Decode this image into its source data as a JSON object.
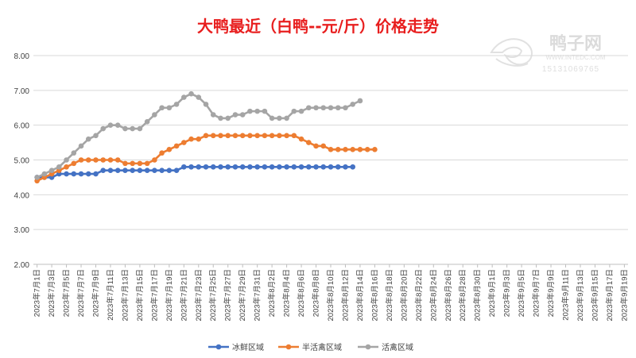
{
  "chart_data": {
    "type": "line",
    "title": "大鸭最近（白鸭--元/斤）价格走势",
    "xlabel": "",
    "ylabel": "",
    "ylim": [
      2.0,
      8.0
    ],
    "yticks": [
      "2.00",
      "3.00",
      "4.00",
      "5.00",
      "6.00",
      "7.00",
      "8.00"
    ],
    "grid": "horizontal",
    "legend_position": "bottom",
    "x_start": "2023-07-01",
    "x_end": "2023-09-20",
    "x_tick_labels": [
      "2023年7月1日",
      "2023年7月3日",
      "2023年7月5日",
      "2023年7月7日",
      "2023年7月9日",
      "2023年7月11日",
      "2023年7月13日",
      "2023年7月15日",
      "2023年7月17日",
      "2023年7月19日",
      "2023年7月21日",
      "2023年7月23日",
      "2023年7月25日",
      "2023年7月27日",
      "2023年7月29日",
      "2023年7月31日",
      "2023年8月2日",
      "2023年8月4日",
      "2023年8月6日",
      "2023年8月8日",
      "2023年8月10日",
      "2023年8月12日",
      "2023年8月14日",
      "2023年8月16日",
      "2023年8月18日",
      "2023年8月20日",
      "2023年8月22日",
      "2023年8月24日",
      "2023年8月26日",
      "2023年8月28日",
      "2023年8月30日",
      "2023年9月1日",
      "2023年9月3日",
      "2023年9月5日",
      "2023年9月7日",
      "2023年9月9日",
      "2023年9月11日",
      "2023年9月13日",
      "2023年9月15日",
      "2023年9月17日",
      "2023年9月19日"
    ],
    "series": [
      {
        "name": "冰鲜区域",
        "color": "#4472C4",
        "values": [
          4.5,
          4.5,
          4.5,
          4.6,
          4.6,
          4.6,
          4.6,
          4.6,
          4.6,
          4.7,
          4.7,
          4.7,
          4.7,
          4.7,
          4.7,
          4.7,
          4.7,
          4.7,
          4.7,
          4.7,
          4.8,
          4.8,
          4.8,
          4.8,
          4.8,
          4.8,
          4.8,
          4.8,
          4.8,
          4.8,
          4.8,
          4.8,
          4.8,
          4.8,
          4.8,
          4.8,
          4.8,
          4.8,
          4.8,
          4.8,
          4.8,
          4.8,
          4.8,
          4.8
        ]
      },
      {
        "name": "半活禽区域",
        "color": "#ED7D31",
        "values": [
          4.4,
          4.5,
          4.6,
          4.7,
          4.8,
          4.9,
          5.0,
          5.0,
          5.0,
          5.0,
          5.0,
          5.0,
          4.9,
          4.9,
          4.9,
          4.9,
          5.0,
          5.2,
          5.3,
          5.4,
          5.5,
          5.6,
          5.6,
          5.7,
          5.7,
          5.7,
          5.7,
          5.7,
          5.7,
          5.7,
          5.7,
          5.7,
          5.7,
          5.7,
          5.7,
          5.7,
          5.6,
          5.5,
          5.4,
          5.4,
          5.3,
          5.3,
          5.3,
          5.3,
          5.3,
          5.3,
          5.3
        ]
      },
      {
        "name": "活禽区域",
        "color": "#A5A5A5",
        "values": [
          4.5,
          4.6,
          4.7,
          4.8,
          5.0,
          5.2,
          5.4,
          5.6,
          5.7,
          5.9,
          6.0,
          6.0,
          5.9,
          5.9,
          5.9,
          6.1,
          6.3,
          6.5,
          6.5,
          6.6,
          6.8,
          6.9,
          6.8,
          6.6,
          6.3,
          6.2,
          6.2,
          6.3,
          6.3,
          6.4,
          6.4,
          6.4,
          6.2,
          6.2,
          6.2,
          6.4,
          6.4,
          6.5,
          6.5,
          6.5,
          6.5,
          6.5,
          6.5,
          6.6,
          6.7
        ]
      }
    ]
  },
  "watermark": {
    "brand": "鸭子网",
    "url": "WWW.INTEDC.COM",
    "phone": "15131069765"
  }
}
